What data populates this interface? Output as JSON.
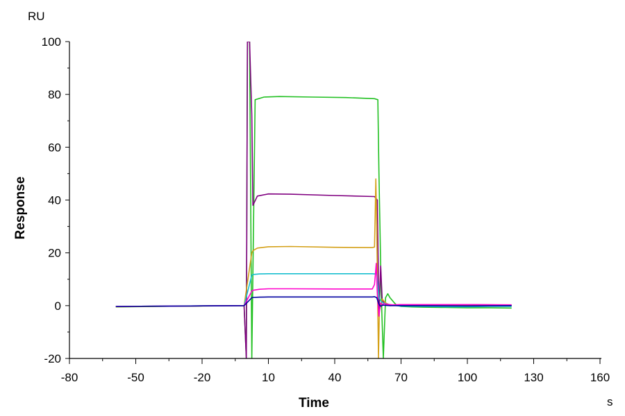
{
  "chart_data": {
    "type": "line",
    "title": "",
    "xlabel": "Time",
    "ylabel": "Response",
    "x_unit": "s",
    "y_unit": "RU",
    "xlim": [
      -80,
      160
    ],
    "ylim": [
      -20,
      100
    ],
    "x_ticks": [
      -80,
      -50,
      -20,
      10,
      40,
      70,
      100,
      130,
      160
    ],
    "y_ticks": [
      -20,
      0,
      20,
      40,
      60,
      80,
      100
    ],
    "grid": false,
    "legend": "none",
    "series": [
      {
        "color": "#22C022",
        "x": [
          -59,
          -10,
          -1,
          0,
          0.5,
          1.5,
          2.5,
          4,
          8,
          15,
          30,
          45,
          58,
          59.5,
          60,
          61,
          62,
          63,
          64,
          65,
          66,
          67,
          68,
          70,
          75,
          80,
          90,
          100,
          110,
          120
        ],
        "y": [
          -0.5,
          0,
          0,
          -20,
          100,
          100,
          -20,
          78,
          79,
          79.2,
          79,
          78.8,
          78.4,
          78,
          50,
          5,
          -20,
          3,
          4.5,
          3,
          2,
          1,
          0.2,
          -0.3,
          -0.5,
          -0.6,
          -0.7,
          -0.8,
          -0.8,
          -0.9
        ]
      },
      {
        "color": "#800080",
        "x": [
          -59,
          -1,
          0,
          0.5,
          1.5,
          2.5,
          3,
          5,
          10,
          20,
          40,
          58,
          59.3,
          59.6,
          60,
          60.8,
          61.5,
          62.5,
          63.5,
          65,
          70,
          100,
          110,
          120
        ],
        "y": [
          -0.3,
          0,
          -20,
          100,
          100,
          72,
          38,
          41.5,
          42.3,
          42.2,
          41.7,
          41.3,
          40,
          20,
          -2,
          15,
          2,
          0.8,
          0.3,
          0,
          0.4,
          0.4,
          0.3,
          0.2
        ]
      },
      {
        "color": "#D4A017",
        "x": [
          -59,
          -1,
          2.5,
          3,
          5,
          10,
          20,
          40,
          57,
          58,
          58.3,
          58.6,
          59,
          59.8,
          60.2,
          61.5,
          62.5,
          63.5,
          65,
          70,
          100,
          120
        ],
        "y": [
          -0.4,
          0,
          20,
          20.8,
          21.8,
          22.3,
          22.4,
          22.1,
          22.0,
          22.2,
          35,
          48,
          30,
          -20,
          -2,
          2.5,
          1.5,
          0.8,
          0.3,
          0,
          0,
          0
        ]
      },
      {
        "color": "#17BECF",
        "x": [
          -59,
          -1,
          2.5,
          3,
          6,
          10,
          20,
          40,
          57,
          58,
          59,
          60,
          61,
          62,
          64,
          66,
          70,
          90,
          100,
          110,
          120
        ],
        "y": [
          -0.3,
          0,
          11.5,
          11.8,
          12.0,
          12.1,
          12.1,
          12.1,
          12.1,
          12.0,
          12.4,
          3,
          1.5,
          1.0,
          0.5,
          0.2,
          -0.2,
          -0.4,
          -0.4,
          -0.3,
          -0.3
        ]
      },
      {
        "color": "#FF00CC",
        "x": [
          -59,
          -1,
          2.5,
          3,
          6,
          10,
          20,
          40,
          57,
          58,
          58.4,
          58.8,
          59.3,
          60,
          60.7,
          61.4,
          62.5,
          64,
          66,
          70,
          100,
          120
        ],
        "y": [
          -0.3,
          0,
          5.5,
          5.8,
          6.2,
          6.4,
          6.4,
          6.3,
          6.3,
          8,
          12,
          16,
          4,
          -4,
          1,
          0.5,
          0.7,
          0.5,
          0.3,
          0.4,
          0.4,
          0.3
        ]
      },
      {
        "color": "#0000A0",
        "x": [
          -59,
          -1,
          2.5,
          3,
          6,
          10,
          20,
          40,
          57,
          58,
          59,
          60,
          60.8,
          61.8,
          63,
          65,
          70,
          100,
          120
        ],
        "y": [
          -0.3,
          0,
          3,
          3.1,
          3.2,
          3.3,
          3.3,
          3.3,
          3.3,
          3.4,
          3.0,
          0.5,
          -0.2,
          0.2,
          0.1,
          0,
          0,
          -0.1,
          0
        ]
      }
    ]
  }
}
